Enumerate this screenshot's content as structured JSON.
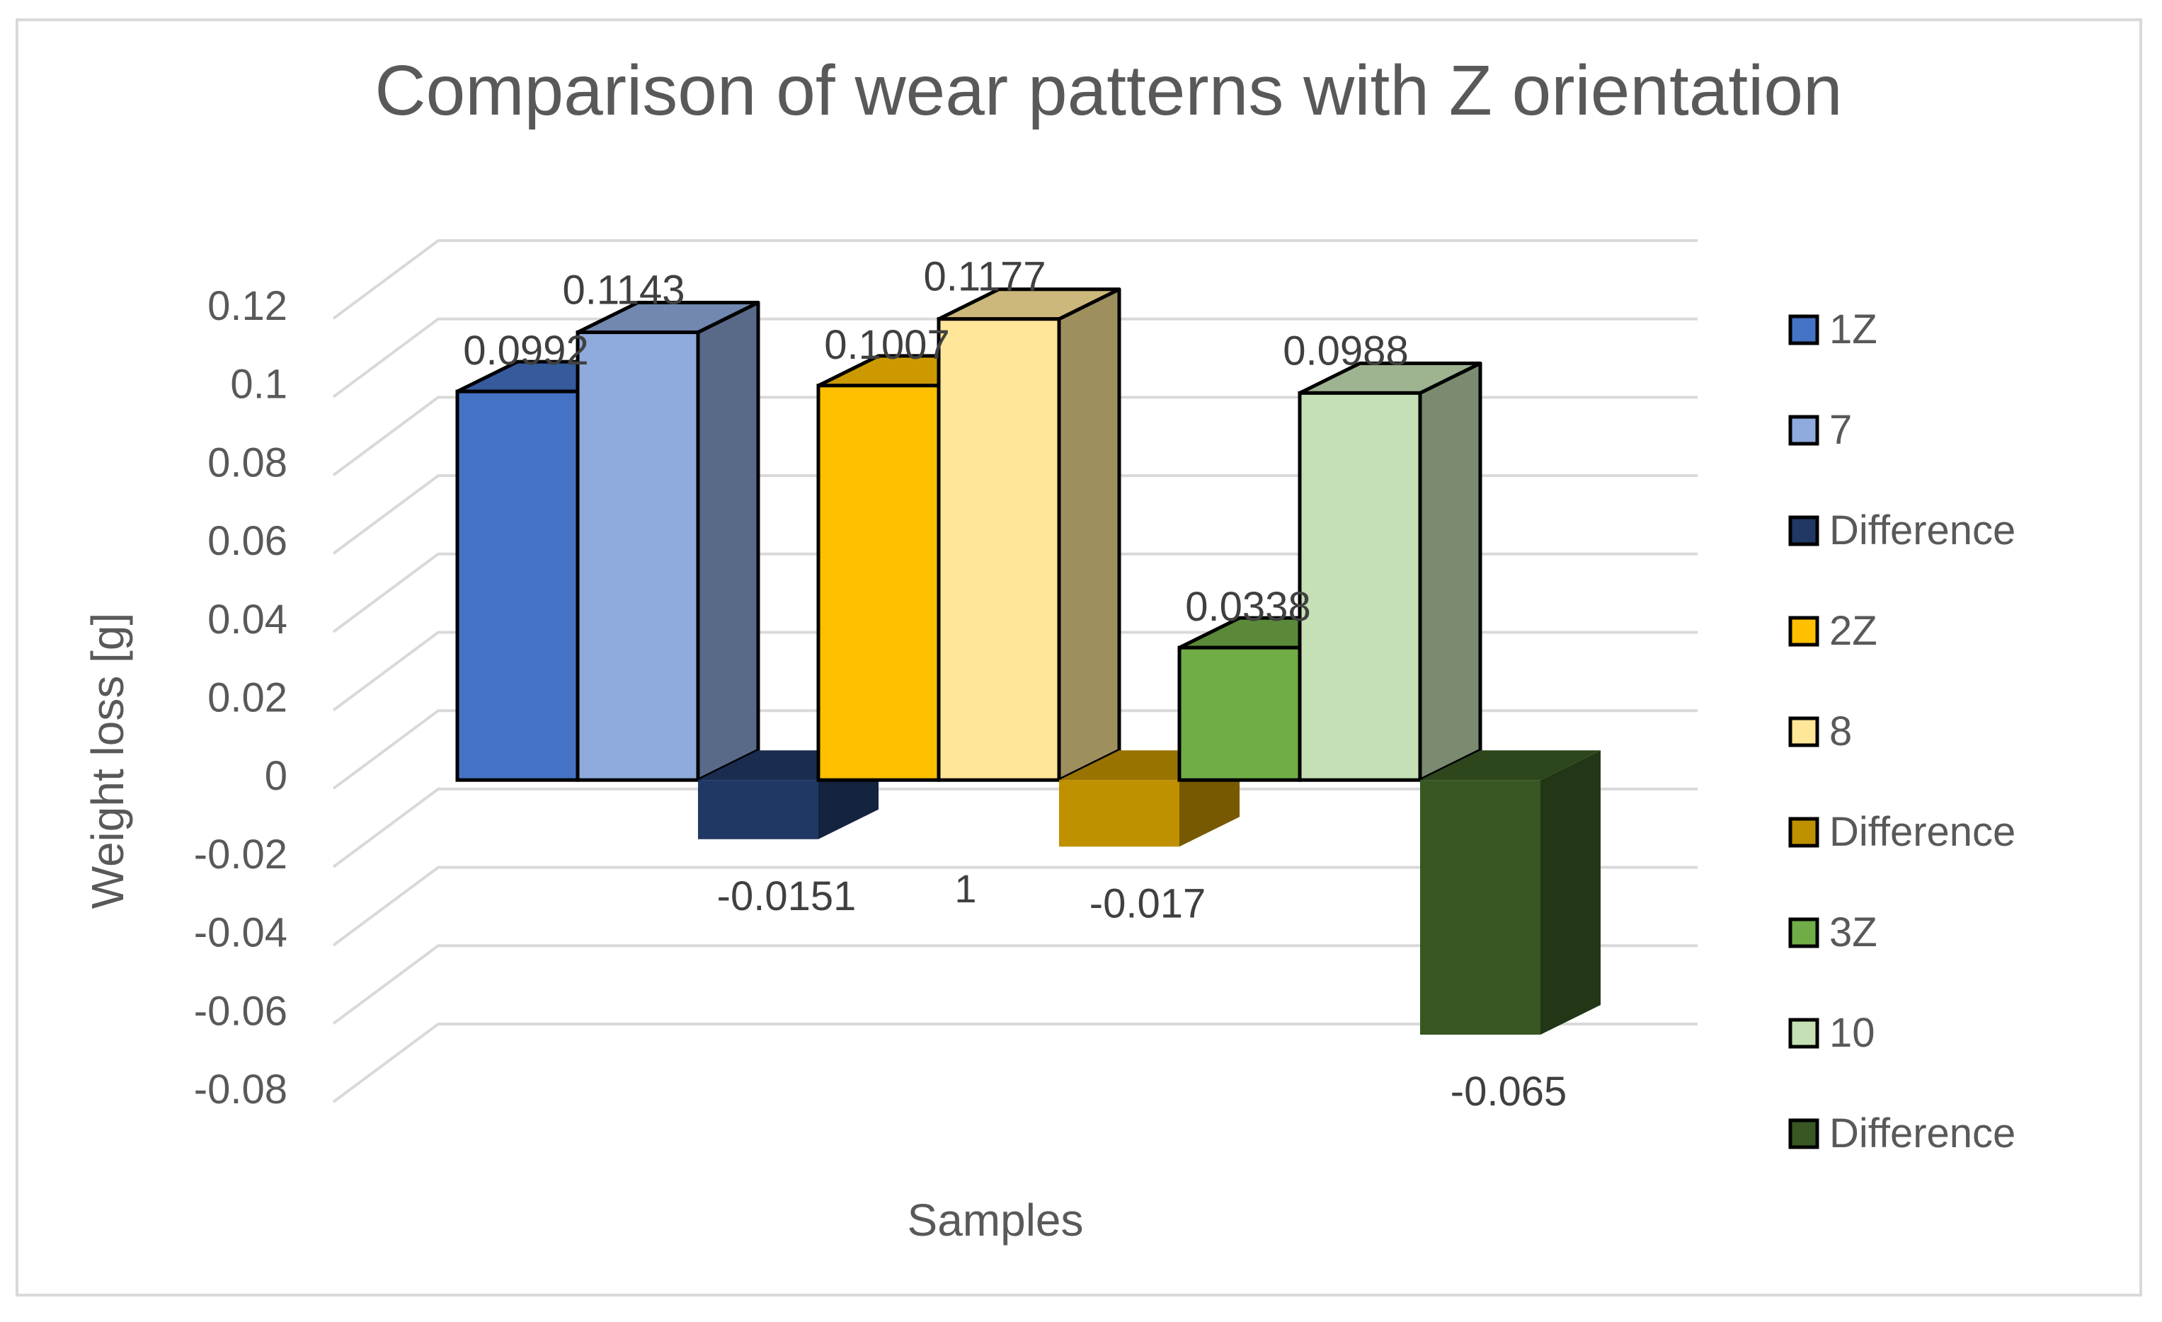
{
  "chart_data": {
    "type": "bar",
    "title": "Comparison of wear patterns with Z orientation",
    "xlabel": "Samples",
    "ylabel": "Weight loss [g]",
    "categories": [
      "1"
    ],
    "ylim": [
      -0.08,
      0.12
    ],
    "ytick_step": 0.02,
    "y_ticks": [
      "0.12",
      "0.1",
      "0.08",
      "0.06",
      "0.04",
      "0.02",
      "0",
      "-0.02",
      "-0.04",
      "-0.06",
      "-0.08"
    ],
    "grid": true,
    "legend_position": "right",
    "series": [
      {
        "name": "1Z",
        "value": 0.0992,
        "label": "0.0992",
        "color": "#4472C4"
      },
      {
        "name": "7",
        "value": 0.1143,
        "label": "0.1143",
        "color": "#8FAADC"
      },
      {
        "name": "Difference",
        "value": -0.0151,
        "label": "-0.0151",
        "color": "#203864"
      },
      {
        "name": "2Z",
        "value": 0.1007,
        "label": "0.1007",
        "color": "#FFC000"
      },
      {
        "name": "8",
        "value": 0.1177,
        "label": "0.1177",
        "color": "#FFE699"
      },
      {
        "name": "Difference",
        "value": -0.017,
        "label": "-0.017",
        "color": "#BF9000"
      },
      {
        "name": "3Z",
        "value": 0.0338,
        "label": "0.0338",
        "color": "#70AD47"
      },
      {
        "name": "10",
        "value": 0.0988,
        "label": "0.0988",
        "color": "#C5E0B4"
      },
      {
        "name": "Difference",
        "value": -0.065,
        "label": "-0.065",
        "color": "#385723"
      }
    ]
  }
}
